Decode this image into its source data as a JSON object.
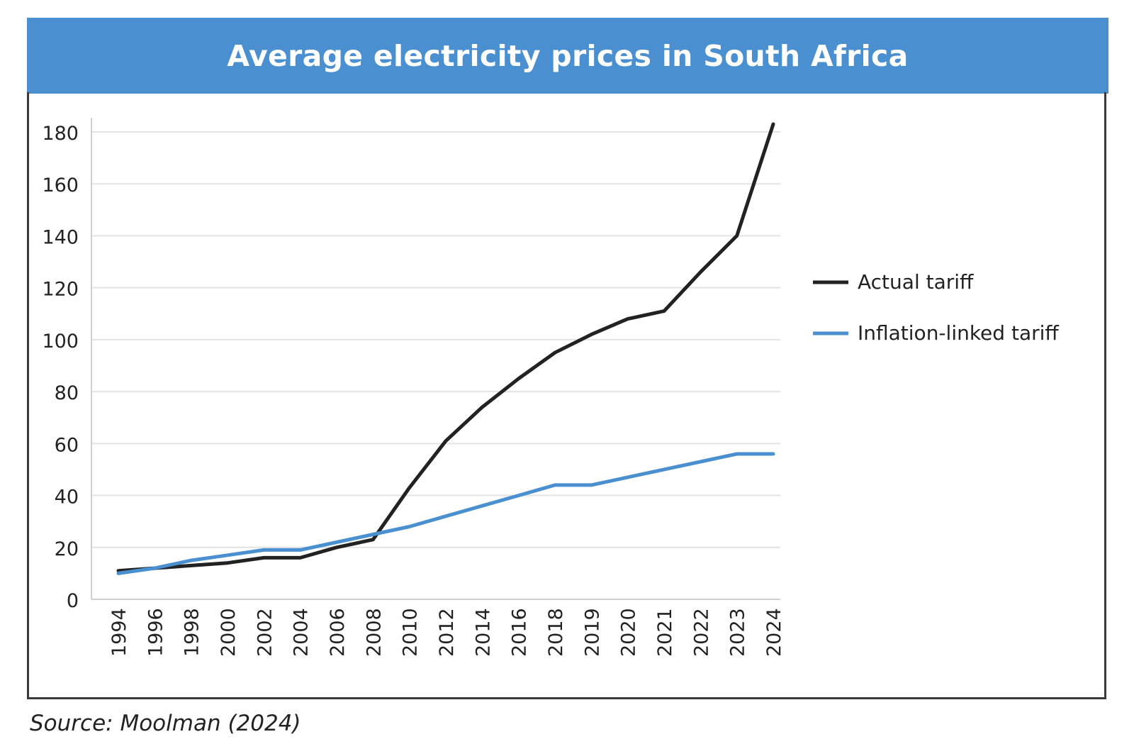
{
  "title": "Average electricity prices in South Africa",
  "source": "Source: Moolman (2024)",
  "chart_data": {
    "type": "line",
    "title": "Average electricity prices in South Africa",
    "categories": [
      "1994",
      "1996",
      "1998",
      "2000",
      "2002",
      "2004",
      "2006",
      "2008",
      "2010",
      "2012",
      "2014",
      "2016",
      "2018",
      "2019",
      "2020",
      "2021",
      "2022",
      "2023",
      "2024"
    ],
    "y_ticks": [
      0,
      20,
      40,
      60,
      80,
      100,
      120,
      140,
      160,
      180
    ],
    "ylim": [
      0,
      180
    ],
    "grid": true,
    "legend_position": "right",
    "series": [
      {
        "name": "Actual tariff",
        "color": "#222222",
        "values": [
          11,
          12,
          13,
          14,
          16,
          16,
          20,
          23,
          43,
          61,
          74,
          85,
          95,
          102,
          108,
          111,
          126,
          140,
          183
        ]
      },
      {
        "name": "Inflation-linked tariff",
        "color": "#4a90d0",
        "values": [
          10,
          12,
          15,
          17,
          19,
          19,
          22,
          25,
          28,
          32,
          36,
          40,
          44,
          44,
          47,
          50,
          53,
          56,
          56
        ]
      }
    ]
  }
}
